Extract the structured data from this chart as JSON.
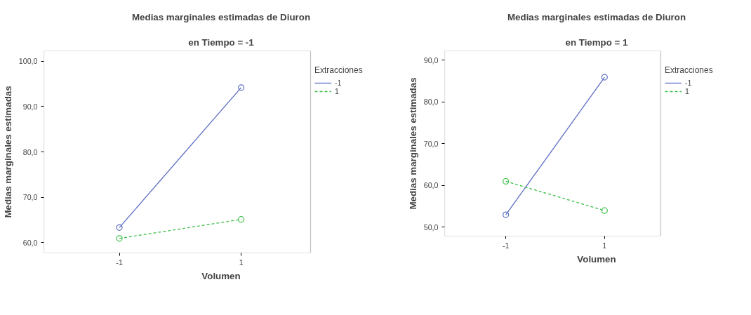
{
  "chart_data": [
    {
      "type": "line",
      "title": "Medias marginales estimadas de Diuron",
      "subtitle": "en Tiempo = -1",
      "xlabel": "Volumen",
      "ylabel": "Medias marginales estimadas",
      "legend_title": "Extracciones",
      "legend": "right",
      "grid": false,
      "marker": "circle",
      "categories": [
        "-1",
        "1"
      ],
      "ylim": [
        57.7,
        102.3
      ],
      "yticks": [
        {
          "value": 60,
          "label": "60,0"
        },
        {
          "value": 70,
          "label": "70,0"
        },
        {
          "value": 80,
          "label": "80,0"
        },
        {
          "value": 90,
          "label": "90,0"
        },
        {
          "value": 100,
          "label": "100,0"
        }
      ],
      "series": [
        {
          "name": "-1",
          "color": "#5b6dc2",
          "line_style": "solid",
          "values": [
            63.3,
            94.2
          ]
        },
        {
          "name": "1",
          "color": "#3dbf4a",
          "line_style": "dashed",
          "values": [
            60.9,
            65.1
          ]
        }
      ]
    },
    {
      "type": "line",
      "title": "Medias marginales estimadas de Diuron",
      "subtitle": "en Tiempo = 1",
      "xlabel": "Volumen",
      "ylabel": "Medias marginales estimadas",
      "legend_title": "Extracciones",
      "legend": "right",
      "grid": false,
      "marker": "circle",
      "categories": [
        "-1",
        "1"
      ],
      "ylim": [
        47.9,
        92.2
      ],
      "yticks": [
        {
          "value": 50,
          "label": "50,0"
        },
        {
          "value": 60,
          "label": "60,0"
        },
        {
          "value": 70,
          "label": "70,0"
        },
        {
          "value": 80,
          "label": "80,0"
        },
        {
          "value": 90,
          "label": "90,0"
        }
      ],
      "series": [
        {
          "name": "-1",
          "color": "#5b6dc2",
          "line_style": "solid",
          "values": [
            53.0,
            85.9
          ]
        },
        {
          "name": "1",
          "color": "#3dbf4a",
          "line_style": "dashed",
          "values": [
            61.0,
            54.0
          ]
        }
      ]
    }
  ]
}
